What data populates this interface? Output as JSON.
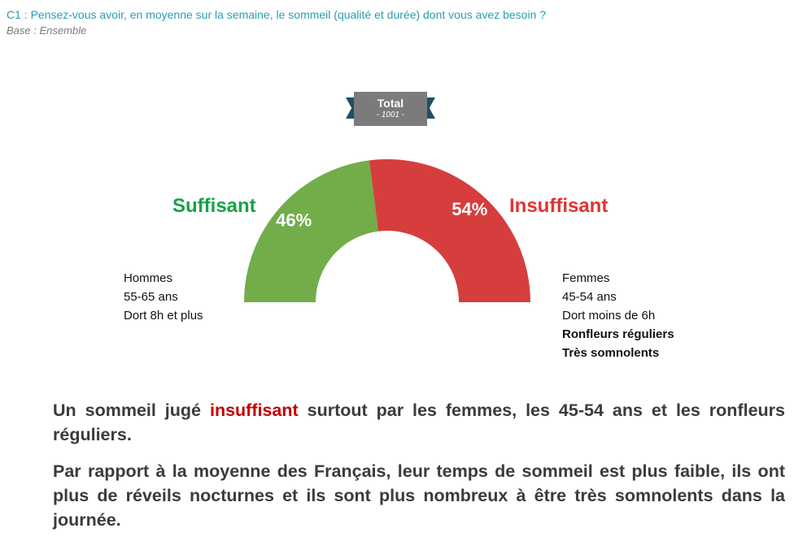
{
  "header": {
    "question": "C1 : Pensez-vous avoir, en moyenne sur la semaine, le sommeil (qualité et durée) dont vous avez besoin ?",
    "base": "Base : Ensemble"
  },
  "total_badge": {
    "label": "Total",
    "base": "- 1001 -"
  },
  "chart_data": {
    "type": "pie",
    "subtype": "semi-donut",
    "categories": [
      "Suffisant",
      "Insuffisant"
    ],
    "values": [
      46,
      54
    ],
    "data_labels": [
      "46%",
      "54%"
    ],
    "colors": [
      "#72ad4a",
      "#d63e3e"
    ],
    "label_colors": [
      "#1aa14a",
      "#e03434"
    ]
  },
  "profiles": {
    "suffisant": [
      "Hommes",
      "55-65 ans",
      "Dort 8h et plus"
    ],
    "insuffisant": [
      {
        "text": "Femmes",
        "bold": false
      },
      {
        "text": "45-54 ans",
        "bold": false
      },
      {
        "text": "Dort moins de 6h",
        "bold": false
      },
      {
        "text": "Ronfleurs réguliers",
        "bold": true
      },
      {
        "text": "Très somnolents",
        "bold": true
      }
    ]
  },
  "conclusion": {
    "p1_before": "Un sommeil jugé ",
    "p1_highlight": "insuffisant",
    "p1_after": " surtout par les femmes, les 45-54 ans et les ronfleurs réguliers.",
    "p2": "Par rapport à la moyenne des Français, leur temps de sommeil est plus faible, ils ont plus de réveils nocturnes et ils sont plus nombreux à être très somnolents dans la journée."
  }
}
